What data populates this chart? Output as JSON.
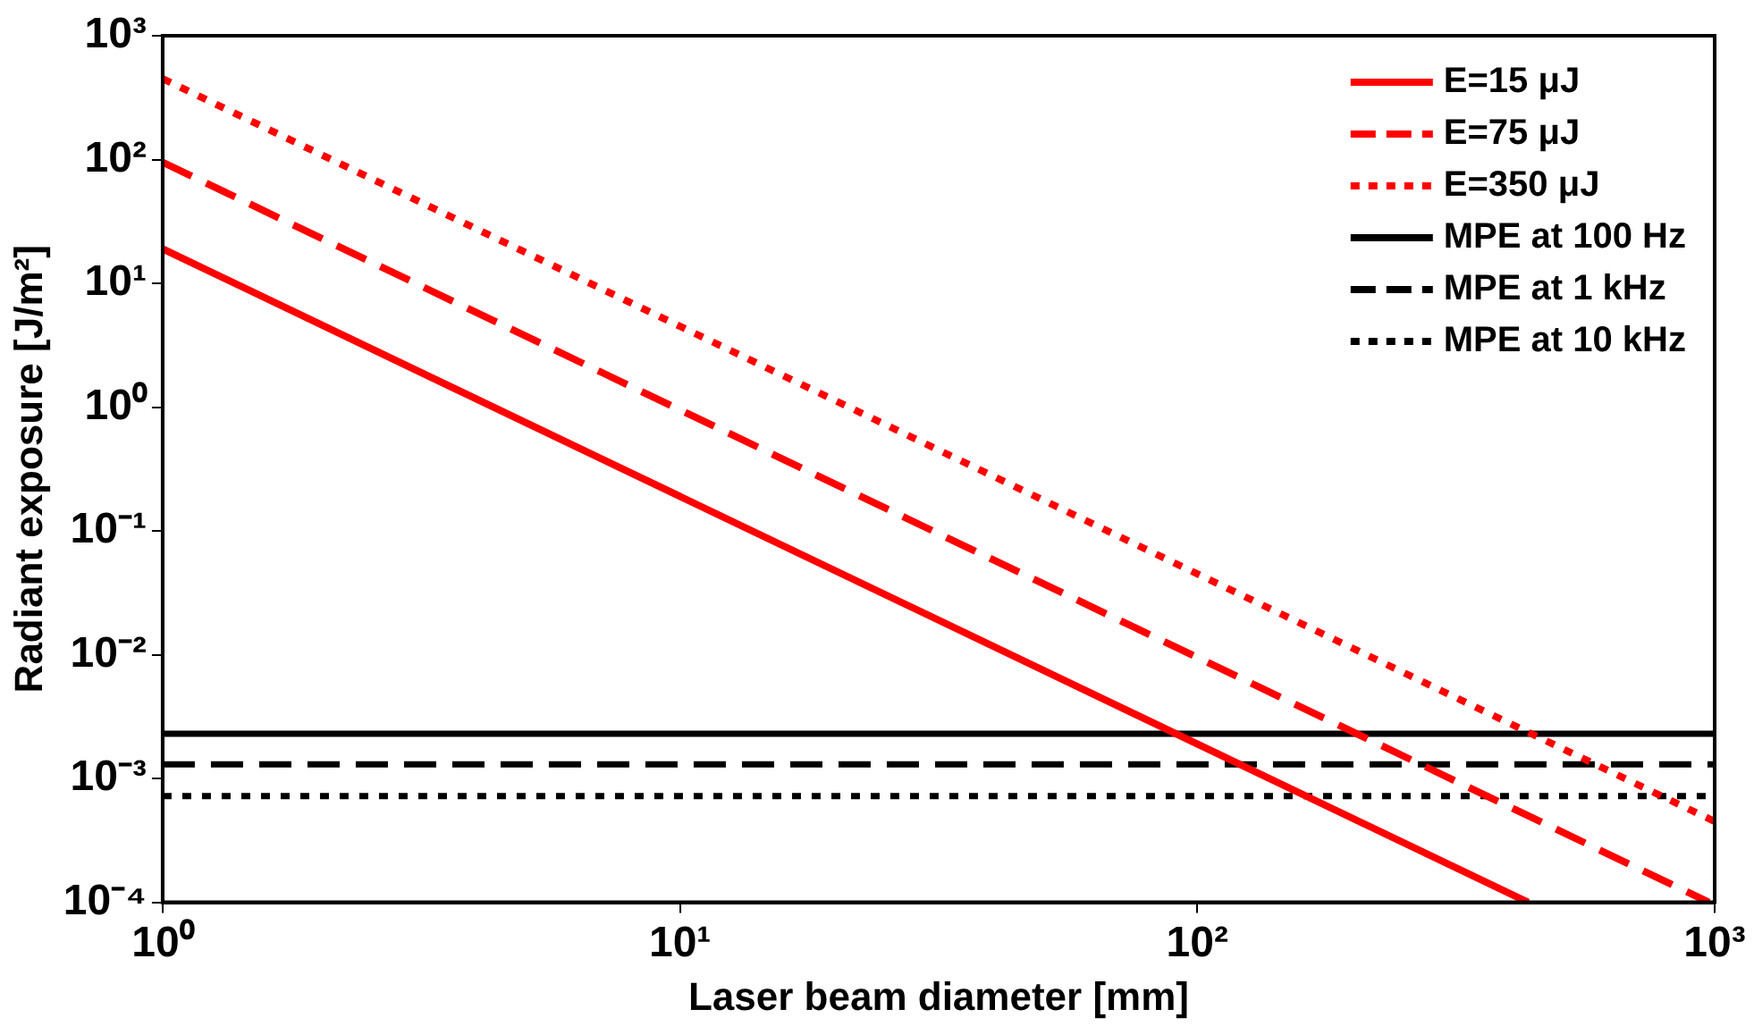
{
  "chart_data": {
    "type": "line",
    "xlabel": "Laser beam diameter [mm]",
    "ylabel": "Radiant exposure [J/m²]",
    "log": "xy",
    "xlim": [
      1,
      1000
    ],
    "xticks": [
      {
        "value": 1,
        "label": "10⁰"
      },
      {
        "value": 10,
        "label": "10¹"
      },
      {
        "value": 100,
        "label": "10²"
      },
      {
        "value": 1000,
        "label": "10³"
      }
    ],
    "ylim": [
      0.0001,
      1000
    ],
    "yticks": [
      {
        "value": 0.0001,
        "label": "10⁻⁴"
      },
      {
        "value": 0.001,
        "label": "10⁻³"
      },
      {
        "value": 0.01,
        "label": "10⁻²"
      },
      {
        "value": 0.1,
        "label": "10⁻¹"
      },
      {
        "value": 1,
        "label": "10⁰"
      },
      {
        "value": 10,
        "label": "10¹"
      },
      {
        "value": 100,
        "label": "10²"
      },
      {
        "value": 1000,
        "label": "10³"
      }
    ],
    "grid": false,
    "legend": "top right",
    "marker": "none",
    "series": [
      {
        "name": "E=15 μJ",
        "color": "#ff0000",
        "line_style": "solid",
        "x": [
          1,
          436
        ],
        "values": [
          19,
          0.0001
        ]
      },
      {
        "name": "E=75 μJ",
        "color": "#ff0000",
        "line_style": "dashed",
        "x": [
          1,
          975
        ],
        "values": [
          95,
          0.0001
        ]
      },
      {
        "name": "E=350 μJ",
        "color": "#ff0000",
        "line_style": "dotted",
        "x": [
          1,
          1000
        ],
        "values": [
          450,
          0.00045
        ]
      },
      {
        "name": "MPE at 100 Hz",
        "color": "#000000",
        "line_style": "solid",
        "x": [
          1,
          1000
        ],
        "values": [
          0.0023,
          0.0023
        ]
      },
      {
        "name": "MPE at 1 kHz",
        "color": "#000000",
        "line_style": "dashed",
        "x": [
          1,
          1000
        ],
        "values": [
          0.0013,
          0.0013
        ]
      },
      {
        "name": "MPE at 10 kHz",
        "color": "#000000",
        "line_style": "dotted",
        "x": [
          1,
          1000
        ],
        "values": [
          0.00072,
          0.00072
        ]
      }
    ]
  }
}
